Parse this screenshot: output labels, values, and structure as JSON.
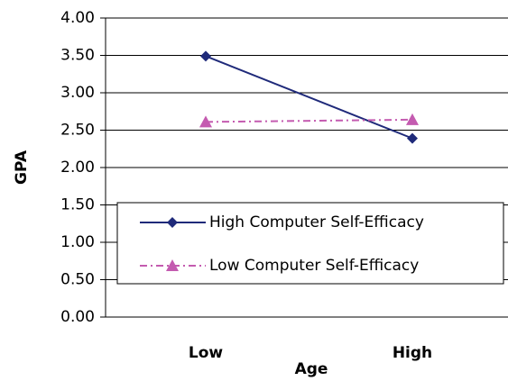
{
  "chart_data": {
    "type": "line",
    "categories": [
      "Low",
      "High"
    ],
    "x_label": "Age",
    "y_label": "GPA",
    "series": [
      {
        "name": "High Computer Self-Efficacy",
        "color": "#1f2a7a",
        "marker": "diamond",
        "dash": "solid",
        "values": [
          3.49,
          2.39
        ]
      },
      {
        "name": "Low Computer Self-Efficacy",
        "color": "#c45bb0",
        "marker": "triangle",
        "dash": "dashdot",
        "values": [
          2.61,
          2.64
        ]
      }
    ],
    "ylim": [
      0,
      4
    ],
    "yticks": [
      {
        "value": 0,
        "label": "0.00"
      },
      {
        "value": 0.5,
        "label": "0.50"
      },
      {
        "value": 1,
        "label": "1.00"
      },
      {
        "value": 1.5,
        "label": "1.50"
      },
      {
        "value": 2,
        "label": "2.00"
      },
      {
        "value": 2.5,
        "label": "2.50"
      },
      {
        "value": 3,
        "label": "3.00"
      },
      {
        "value": 3.5,
        "label": "3.50"
      },
      {
        "value": 4,
        "label": "4.00"
      }
    ],
    "grid": true,
    "legend": "lower-right"
  }
}
